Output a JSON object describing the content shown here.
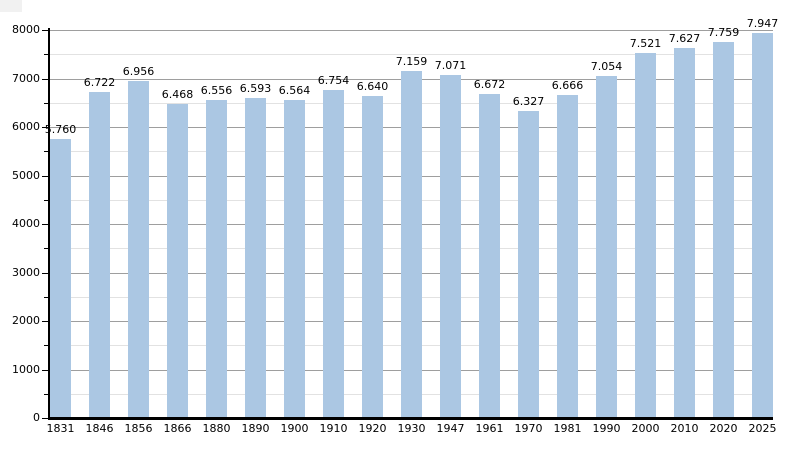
{
  "chart_data": {
    "type": "bar",
    "title": "",
    "xlabel": "",
    "ylabel": "",
    "categories": [
      "1831",
      "1846",
      "1856",
      "1866",
      "1880",
      "1890",
      "1900",
      "1910",
      "1920",
      "1930",
      "1947",
      "1961",
      "1970",
      "1981",
      "1990",
      "2000",
      "2010",
      "2020",
      "2025"
    ],
    "values": [
      5760,
      6722,
      6956,
      6468,
      6556,
      6593,
      6564,
      6754,
      6640,
      7159,
      7071,
      6672,
      6327,
      6666,
      7054,
      7521,
      7627,
      7759,
      7947
    ],
    "value_labels": [
      "5.760",
      "6.722",
      "6.956",
      "6.468",
      "6.556",
      "6.593",
      "6.564",
      "6.754",
      "6.640",
      "7.159",
      "7.071",
      "6.672",
      "6.327",
      "6.666",
      "7.054",
      "7.521",
      "7.627",
      "7.759",
      "7.947"
    ],
    "ylim": [
      0,
      8000
    ],
    "y_major_step": 1000,
    "y_minor_step": 500,
    "y_tick_labels": [
      "0",
      "1000",
      "2000",
      "3000",
      "4000",
      "5000",
      "6000",
      "7000",
      "8000"
    ],
    "grid": "major-and-minor-horizontal",
    "legend": null,
    "colors": {
      "bar": "#abc7e3",
      "grid_major": "#9e9e9e",
      "grid_minor": "#e2e2e2",
      "axis": "#000000",
      "text": "#000000",
      "background": "#ffffff",
      "corner_artifact": "#f1f1f1"
    }
  }
}
